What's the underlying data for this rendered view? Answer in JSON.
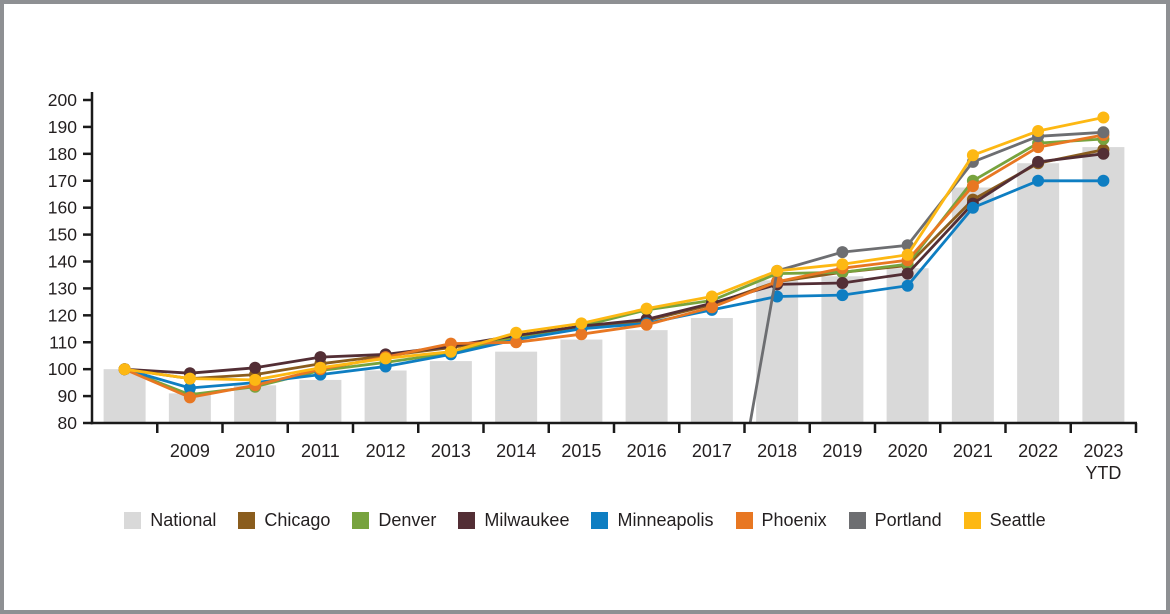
{
  "chart_data": {
    "type": "bar+line",
    "title": "",
    "xlabel": "",
    "ylabel": "",
    "ylim": [
      80,
      200
    ],
    "yticks": [
      80,
      90,
      100,
      110,
      120,
      130,
      140,
      150,
      160,
      170,
      180,
      190,
      200
    ],
    "grid": "off",
    "legend_position": "bottom",
    "categories": [
      "",
      "2009",
      "2010",
      "2011",
      "2012",
      "2013",
      "2014",
      "2015",
      "2016",
      "2017",
      "2018",
      "2019",
      "2020",
      "2021",
      "2022",
      "2023"
    ],
    "last_category_sublabel": "YTD",
    "bar_series": {
      "name": "National",
      "color": "#d9d9d9",
      "values": [
        100,
        91,
        94,
        96,
        99.5,
        103,
        106.5,
        111,
        114.5,
        119,
        133,
        134.5,
        137.5,
        167.5,
        176.5,
        182.5
      ]
    },
    "line_series": [
      {
        "name": "Chicago",
        "color": "#8a5d1e",
        "values": [
          100,
          96.5,
          98,
          102,
          105,
          108,
          112,
          115.5,
          118,
          124,
          132.5,
          136,
          138.5,
          163,
          176.5,
          181.5
        ]
      },
      {
        "name": "Denver",
        "color": "#77a33e",
        "values": [
          100,
          90.5,
          93.5,
          99.5,
          102.5,
          106,
          112,
          116,
          122,
          125.5,
          135.5,
          136,
          139,
          170,
          184,
          185.5
        ]
      },
      {
        "name": "Milwaukee",
        "color": "#532e35",
        "values": [
          100,
          98.5,
          100.5,
          104.5,
          105.5,
          108.5,
          112.5,
          116,
          118.5,
          124.5,
          131.5,
          132,
          135.5,
          161.5,
          177,
          180
        ]
      },
      {
        "name": "Minneapolis",
        "color": "#0e7ec2",
        "values": [
          100,
          93,
          95,
          98,
          101,
          105.5,
          111,
          115,
          117,
          122,
          127,
          127.5,
          131,
          160,
          170,
          170
        ]
      },
      {
        "name": "Phoenix",
        "color": "#e87722",
        "values": [
          100,
          89.5,
          94,
          100,
          104.5,
          109.5,
          110,
          113,
          116.5,
          123,
          132.5,
          137.5,
          140.5,
          168,
          182.5,
          187
        ]
      },
      {
        "name": "Portland",
        "color": "#6d6e71",
        "values": [
          null,
          null,
          null,
          null,
          null,
          null,
          null,
          null,
          null,
          null,
          136.5,
          143.5,
          146,
          177,
          186.5,
          188
        ],
        "enters_from_below_axis": true
      },
      {
        "name": "Seattle",
        "color": "#fdb813",
        "values": [
          100,
          96.5,
          96,
          100.5,
          104,
          106.5,
          113.5,
          117,
          122.5,
          127,
          136.5,
          139,
          142.5,
          179.5,
          188.5,
          193.5
        ]
      }
    ],
    "axis_color": "#1a1a1a"
  }
}
